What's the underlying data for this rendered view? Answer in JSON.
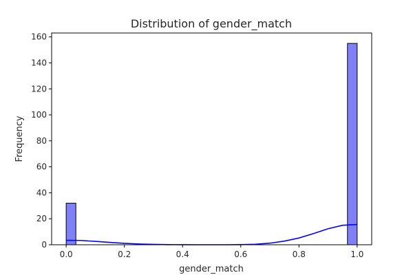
{
  "chart_data": {
    "type": "bar",
    "title": "Distribution of gender_match",
    "xlabel": "gender_match",
    "ylabel": "Frequency",
    "xlim": [
      -0.05,
      1.05
    ],
    "ylim": [
      0,
      163
    ],
    "xticks": [
      0.0,
      0.2,
      0.4,
      0.6,
      0.8,
      1.0
    ],
    "xtick_labels": [
      "0.0",
      "0.2",
      "0.4",
      "0.6",
      "0.8",
      "1.0"
    ],
    "yticks": [
      0,
      20,
      40,
      60,
      80,
      100,
      120,
      140,
      160
    ],
    "ytick_labels": [
      "0",
      "20",
      "40",
      "60",
      "80",
      "100",
      "120",
      "140",
      "160"
    ],
    "grid": false,
    "bars": [
      {
        "x0": 0.0,
        "x1": 0.0333,
        "value": 32
      },
      {
        "x0": 0.9667,
        "x1": 1.0,
        "value": 155
      }
    ],
    "kde": {
      "x": [
        0.0,
        0.05,
        0.1,
        0.15,
        0.2,
        0.25,
        0.3,
        0.35,
        0.4,
        0.45,
        0.5,
        0.55,
        0.6,
        0.65,
        0.7,
        0.75,
        0.8,
        0.85,
        0.9,
        0.95,
        1.0
      ],
      "y": [
        3.4,
        3.3,
        2.6,
        1.8,
        1.1,
        0.6,
        0.3,
        0.1,
        0.02,
        0.0,
        0.0,
        0.0,
        0.1,
        0.4,
        1.2,
        2.8,
        5.2,
        8.6,
        12.3,
        15.0,
        15.6
      ]
    },
    "colors": {
      "bar_fill": "#8080f8",
      "bar_edge": "#000000",
      "kde_line": "#0000ff",
      "axis": "#000000"
    }
  }
}
